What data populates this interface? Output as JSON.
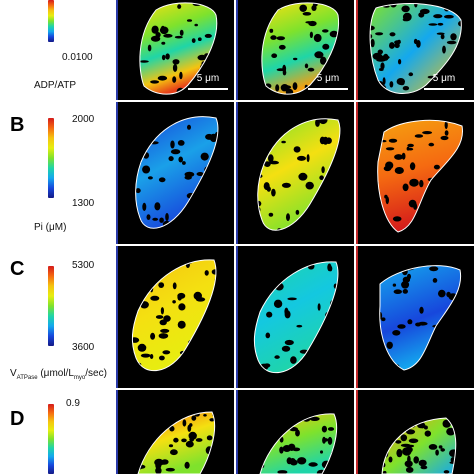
{
  "rows": [
    {
      "letter": "",
      "max": "",
      "min": "0.0100",
      "label_main": "ADP/ATP",
      "label_sub": "",
      "label_tail": ""
    },
    {
      "letter": "B",
      "max": "2000",
      "min": "1300",
      "label_main": "Pi (μM)",
      "label_sub": "",
      "label_tail": ""
    },
    {
      "letter": "C",
      "max": "5300",
      "min": "3600",
      "label_main": "V",
      "label_sub": "ATPase",
      "label_tail": " (μmol/L",
      "label_sub2": "myo",
      "label_tail2": "/sec)"
    },
    {
      "letter": "D",
      "max": "0.9",
      "min": "",
      "label_main": "",
      "label_sub": "",
      "label_tail": ""
    }
  ],
  "scale_bar": "5 μm",
  "colors": {
    "separator_blue": "#2a3aa8",
    "separator_red": "#c0282a",
    "colormap": "jet"
  }
}
